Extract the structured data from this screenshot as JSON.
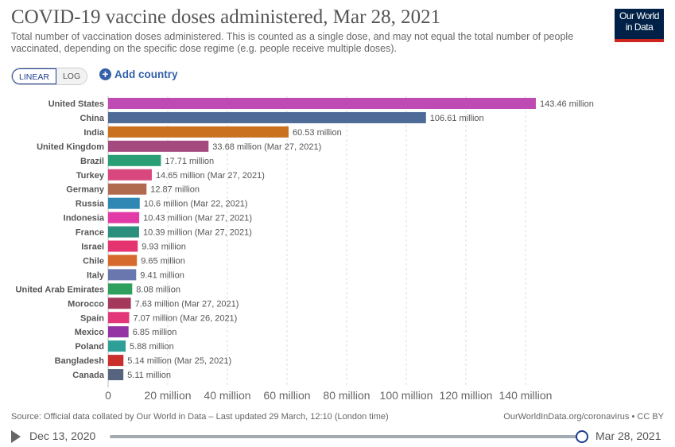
{
  "header": {
    "title": "COVID-19 vaccine doses administered, Mar 28, 2021",
    "subtitle": "Total number of vaccination doses administered. This is counted as a single dose, and may not equal the total number of people vaccinated, depending on the specific dose regime (e.g. people receive multiple doses).",
    "logo": "Our World in Data"
  },
  "controls": {
    "linear": "LINEAR",
    "log": "LOG",
    "add_country": "Add country"
  },
  "footer": {
    "source": "Source: Official data collated by Our World in Data – Last updated 29 March, 12:10 (London time)",
    "credit": "OurWorldInData.org/coronavirus • CC BY"
  },
  "timeline": {
    "start": "Dec 13, 2020",
    "end": "Mar 28, 2021"
  },
  "chart_data": {
    "type": "bar",
    "orientation": "horizontal",
    "xlim": [
      0,
      140
    ],
    "unit": "million",
    "grid": true,
    "ticks": [
      "0",
      "20 million",
      "40 million",
      "60 million",
      "80 million",
      "100 million",
      "120 million",
      "140 million"
    ],
    "tick_values": [
      0,
      20,
      40,
      60,
      80,
      100,
      120,
      140
    ],
    "categories": [
      "United States",
      "China",
      "India",
      "United Kingdom",
      "Brazil",
      "Turkey",
      "Germany",
      "Russia",
      "Indonesia",
      "France",
      "Israel",
      "Chile",
      "Italy",
      "United Arab Emirates",
      "Morocco",
      "Spain",
      "Mexico",
      "Poland",
      "Bangladesh",
      "Canada"
    ],
    "values": [
      143.46,
      106.61,
      60.53,
      33.68,
      17.71,
      14.65,
      12.87,
      10.6,
      10.43,
      10.39,
      9.93,
      9.65,
      9.41,
      8.08,
      7.63,
      7.07,
      6.85,
      5.88,
      5.14,
      5.11
    ],
    "labels": [
      "143.46 million",
      "106.61 million",
      "60.53 million",
      "33.68 million (Mar 27, 2021)",
      "17.71 million",
      "14.65 million (Mar 27, 2021)",
      "12.87 million",
      "10.6 million (Mar 22, 2021)",
      "10.43 million (Mar 27, 2021)",
      "10.39 million (Mar 27, 2021)",
      "9.93 million",
      "9.65 million",
      "9.41 million",
      "8.08 million",
      "7.63 million (Mar 27, 2021)",
      "7.07 million (Mar 26, 2021)",
      "6.85 million",
      "5.88 million",
      "5.14 million (Mar 25, 2021)",
      "5.11 million"
    ],
    "colors": [
      "#be4bb3",
      "#4d6b96",
      "#c9711f",
      "#a44a80",
      "#2a9e74",
      "#d9477f",
      "#b06a4e",
      "#2f88b4",
      "#e23aa6",
      "#2a8f7c",
      "#e5336f",
      "#d66a2c",
      "#6a77ae",
      "#2f9f5d",
      "#a3385a",
      "#e2387a",
      "#9433a3",
      "#2e9f97",
      "#c9302c",
      "#566480"
    ]
  }
}
